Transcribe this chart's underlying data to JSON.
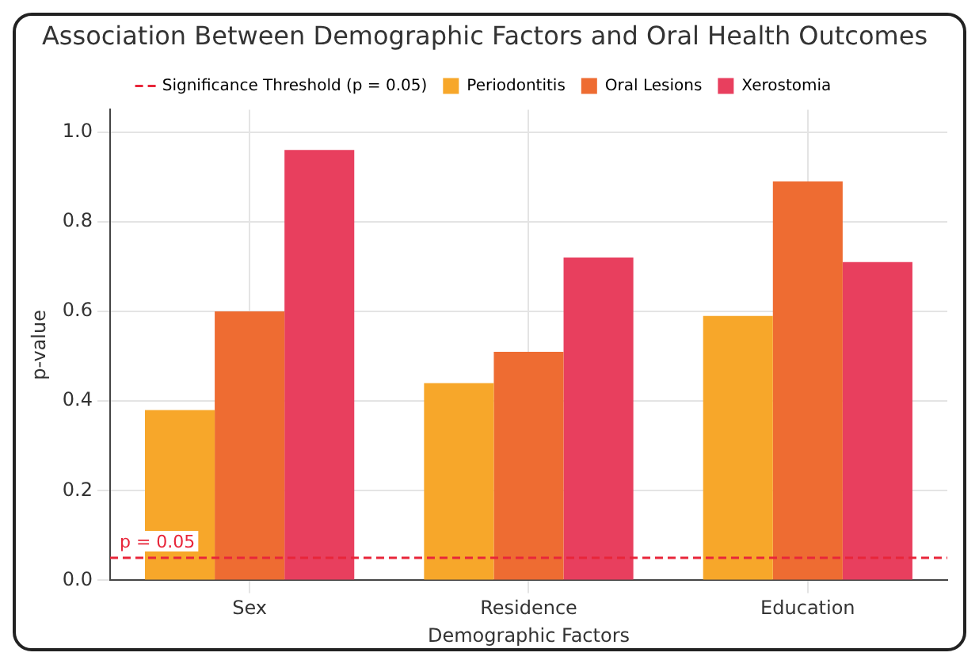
{
  "chart_data": {
    "type": "bar",
    "title": "Association Between Demographic Factors and Oral Health Outcomes",
    "xlabel": "Demographic Factors",
    "ylabel": "p-value",
    "categories": [
      "Sex",
      "Residence",
      "Education"
    ],
    "series": [
      {
        "name": "Periodontitis",
        "color": "#f7a72a",
        "values": [
          0.38,
          0.44,
          0.59
        ]
      },
      {
        "name": "Oral Lesions",
        "color": "#ee6c32",
        "values": [
          0.6,
          0.51,
          0.89
        ]
      },
      {
        "name": "Xerostomia",
        "color": "#e83f5e",
        "values": [
          0.96,
          0.72,
          0.71
        ]
      }
    ],
    "ylim": [
      0,
      1.05
    ],
    "yticks": [
      {
        "value": 0,
        "label": "0.0"
      },
      {
        "value": 0.2,
        "label": "0.2"
      },
      {
        "value": 0.4,
        "label": "0.4"
      },
      {
        "value": 0.6,
        "label": "0.6"
      },
      {
        "value": 0.8,
        "label": "0.8"
      },
      {
        "value": 1,
        "label": "1.0"
      }
    ],
    "ref_lines": [
      {
        "axis": "y",
        "value": 0.05,
        "label": "Significance Threshold (p = 0.05)",
        "color": "#e8263a",
        "line_style": "dashed"
      }
    ],
    "annotations": [
      {
        "text": "p = 0.05",
        "y": 0.05
      }
    ],
    "grid": true,
    "legend": "top"
  }
}
